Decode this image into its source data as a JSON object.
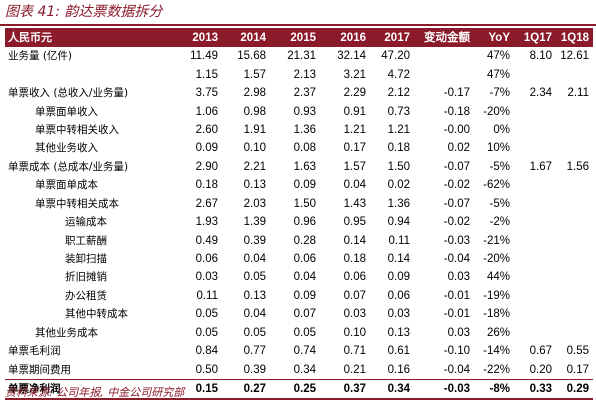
{
  "title": "图表 41:  韵达票数据拆分",
  "source": "资料来源: 公司年报, 中金公司研究部",
  "header": [
    "人民币元",
    "2013",
    "2014",
    "2015",
    "2016",
    "2017",
    "变动金额",
    "YoY",
    "1Q17",
    "1Q18"
  ],
  "rows": [
    {
      "label": "业务量 (亿件)",
      "indent": 0,
      "bold": false,
      "values": [
        "11.49",
        "15.68",
        "21.31",
        "32.14",
        "47.20",
        "",
        "47%",
        "8.10",
        "12.61"
      ]
    },
    {
      "label": "",
      "indent": 0,
      "bold": false,
      "values": [
        "1.15",
        "1.57",
        "2.13",
        "3.21",
        "4.72",
        "",
        "47%",
        "",
        ""
      ]
    },
    {
      "label": "单票收入 (总收入/业务量)",
      "indent": 0,
      "bold": false,
      "values": [
        "3.75",
        "2.98",
        "2.37",
        "2.29",
        "2.12",
        "-0.17",
        "-7%",
        "2.34",
        "2.11"
      ]
    },
    {
      "label": "单票面单收入",
      "indent": 1,
      "bold": false,
      "values": [
        "1.06",
        "0.98",
        "0.93",
        "0.91",
        "0.73",
        "-0.18",
        "-20%",
        "",
        ""
      ]
    },
    {
      "label": "单票中转相关收入",
      "indent": 1,
      "bold": false,
      "values": [
        "2.60",
        "1.91",
        "1.36",
        "1.21",
        "1.21",
        "-0.00",
        "0%",
        "",
        ""
      ]
    },
    {
      "label": "其他业务收入",
      "indent": 1,
      "bold": false,
      "values": [
        "0.09",
        "0.10",
        "0.08",
        "0.17",
        "0.18",
        "0.02",
        "10%",
        "",
        ""
      ]
    },
    {
      "label": "单票成本 (总成本/业务量)",
      "indent": 0,
      "bold": false,
      "values": [
        "2.90",
        "2.21",
        "1.63",
        "1.57",
        "1.50",
        "-0.07",
        "-5%",
        "1.67",
        "1.56"
      ]
    },
    {
      "label": "单票面单成本",
      "indent": 1,
      "bold": false,
      "values": [
        "0.18",
        "0.13",
        "0.09",
        "0.04",
        "0.02",
        "-0.02",
        "-62%",
        "",
        ""
      ]
    },
    {
      "label": "单票中转相关成本",
      "indent": 1,
      "bold": false,
      "values": [
        "2.67",
        "2.03",
        "1.50",
        "1.43",
        "1.36",
        "-0.07",
        "-5%",
        "",
        ""
      ]
    },
    {
      "label": "运输成本",
      "indent": 2,
      "bold": false,
      "values": [
        "1.93",
        "1.39",
        "0.96",
        "0.95",
        "0.94",
        "-0.02",
        "-2%",
        "",
        ""
      ]
    },
    {
      "label": "职工薪酬",
      "indent": 2,
      "bold": false,
      "values": [
        "0.49",
        "0.39",
        "0.28",
        "0.14",
        "0.11",
        "-0.03",
        "-21%",
        "",
        ""
      ]
    },
    {
      "label": "装卸扫描",
      "indent": 2,
      "bold": false,
      "values": [
        "0.06",
        "0.04",
        "0.06",
        "0.18",
        "0.14",
        "-0.04",
        "-20%",
        "",
        ""
      ]
    },
    {
      "label": "折旧摊销",
      "indent": 2,
      "bold": false,
      "values": [
        "0.03",
        "0.05",
        "0.04",
        "0.06",
        "0.09",
        "0.03",
        "44%",
        "",
        ""
      ]
    },
    {
      "label": "办公租赁",
      "indent": 2,
      "bold": false,
      "values": [
        "0.11",
        "0.13",
        "0.09",
        "0.07",
        "0.06",
        "-0.01",
        "-19%",
        "",
        ""
      ]
    },
    {
      "label": "其他中转成本",
      "indent": 2,
      "bold": false,
      "values": [
        "0.05",
        "0.04",
        "0.07",
        "0.03",
        "0.03",
        "-0.01",
        "-18%",
        "",
        ""
      ]
    },
    {
      "label": "其他业务成本",
      "indent": 1,
      "bold": false,
      "values": [
        "0.05",
        "0.05",
        "0.05",
        "0.10",
        "0.13",
        "0.03",
        "26%",
        "",
        ""
      ]
    },
    {
      "label": "单票毛利润",
      "indent": 0,
      "bold": false,
      "values": [
        "0.84",
        "0.77",
        "0.74",
        "0.71",
        "0.61",
        "-0.10",
        "-14%",
        "0.67",
        "0.55"
      ]
    },
    {
      "label": "单票期间费用",
      "indent": 0,
      "bold": false,
      "values": [
        "0.50",
        "0.39",
        "0.34",
        "0.21",
        "0.16",
        "-0.04",
        "-22%",
        "0.20",
        "0.17"
      ]
    },
    {
      "label": "单票净利润",
      "indent": 0,
      "bold": true,
      "values": [
        "0.15",
        "0.27",
        "0.25",
        "0.37",
        "0.34",
        "-0.03",
        "-8%",
        "0.33",
        "0.29"
      ]
    }
  ]
}
